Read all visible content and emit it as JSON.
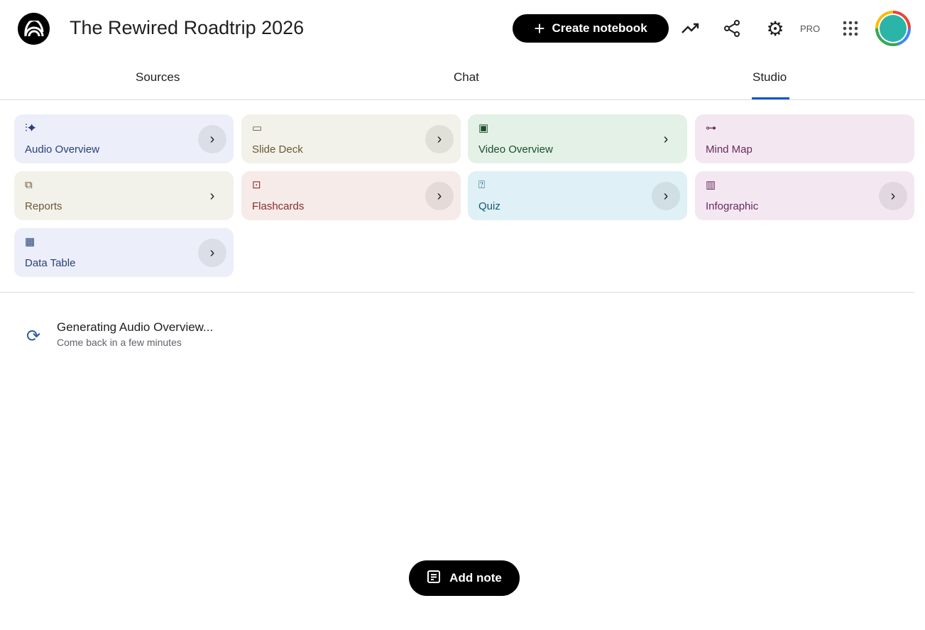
{
  "header": {
    "title": "The Rewired Roadtrip 2026",
    "create_label": "Create notebook",
    "pro_label": "PRO"
  },
  "tabs": [
    {
      "label": "Sources"
    },
    {
      "label": "Chat"
    },
    {
      "label": "Studio",
      "active": true
    }
  ],
  "studio_cards": [
    {
      "label": "Audio Overview",
      "icon": "audio-waveform-icon",
      "bg": "#eceff9",
      "color": "#2a3f7a"
    },
    {
      "label": "Slide Deck",
      "icon": "slides-icon",
      "bg": "#f2f1ea",
      "color": "#6b5a35"
    },
    {
      "label": "Video Overview",
      "icon": "video-icon",
      "bg": "#e3f1e6",
      "color": "#1e4d2b"
    },
    {
      "label": "Mind Map",
      "icon": "mind-map-icon",
      "bg": "#f3e8f1",
      "color": "#6a2a5e"
    },
    {
      "label": "Reports",
      "icon": "reports-icon",
      "bg": "#f2f1ea",
      "color": "#6b5a35"
    },
    {
      "label": "Flashcards",
      "icon": "flashcards-icon",
      "bg": "#f6ebe9",
      "color": "#8a2d2d"
    },
    {
      "label": "Quiz",
      "icon": "quiz-icon",
      "bg": "#dff0f6",
      "color": "#125a75"
    },
    {
      "label": "Infographic",
      "icon": "infographic-icon",
      "bg": "#f3e8f1",
      "color": "#6a2a5e"
    },
    {
      "label": "Data Table",
      "icon": "data-table-icon",
      "bg": "#eceff9",
      "color": "#2a3f7a"
    }
  ],
  "generating": {
    "title": "Generating Audio Overview...",
    "subtitle": "Come back in a few minutes"
  },
  "add_note_label": "Add note"
}
